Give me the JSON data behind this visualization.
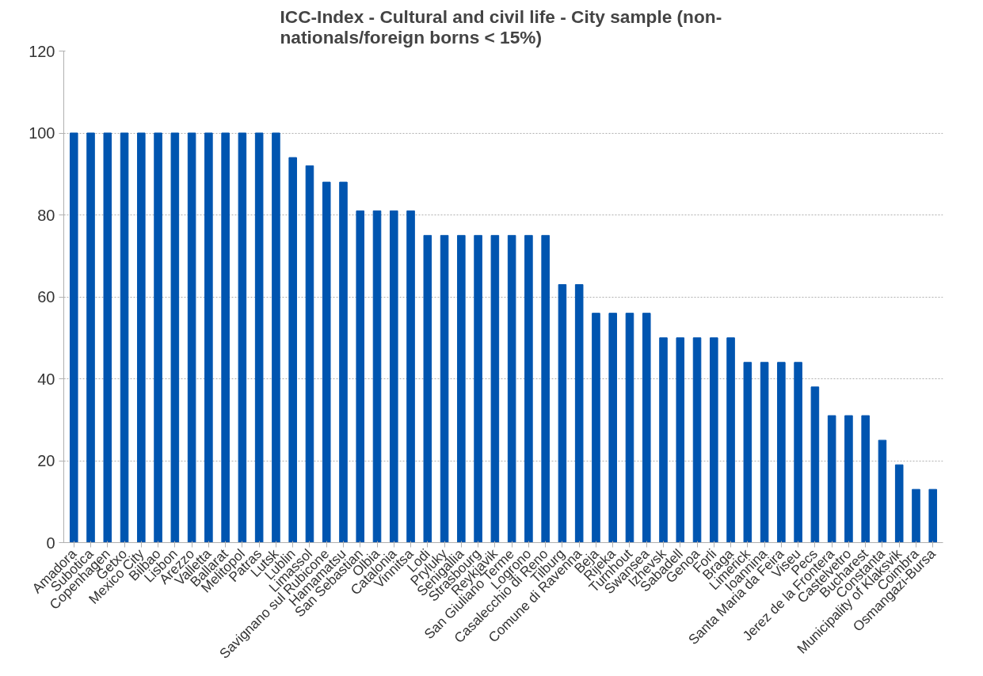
{
  "chart_data": {
    "type": "bar",
    "title": "ICC-Index - Cultural and civil life - City sample  (non-nationals/foreign borns < 15%)",
    "categories": [
      "Amadora",
      "Subotica",
      "Copenhagen",
      "Getxo",
      "Mexico City",
      "Bilbao",
      "Lisbon",
      "Arezzo",
      "Valletta",
      "Ballarat",
      "Melitopol",
      "Patras",
      "Lutsk",
      "Lublin",
      "Limassol",
      "Savignano sul Rubicone",
      "Hamamatsu",
      "San Sebastian",
      "Olbia",
      "Catalonia",
      "Vinnitsa",
      "Lodi",
      "Pryluky",
      "Senigallia",
      "Strasbourg",
      "Reykjavik",
      "San Giuliano Terme",
      "Logrono",
      "Casalecchio di Reno",
      "Tilburg",
      "Comune di Ravenna",
      "Beja",
      "Rijeka",
      "Turnhout",
      "Swansea",
      "Izhevsk",
      "Sabadell",
      "Genoa",
      "Forli",
      "Braga",
      "Limerick",
      "Ioannina",
      "Santa Maria da Feira",
      "Viseu",
      "Pecs",
      "Jerez de la Frontera",
      "Castelvetro",
      "Bucharest",
      "Constanta",
      "Municipality of Klaksvik",
      "Coimbra",
      "Osmangazi-Bursa"
    ],
    "values": [
      100,
      100,
      100,
      100,
      100,
      100,
      100,
      100,
      100,
      100,
      100,
      100,
      100,
      94,
      92,
      88,
      88,
      81,
      81,
      81,
      81,
      75,
      75,
      75,
      75,
      75,
      75,
      75,
      75,
      63,
      63,
      56,
      56,
      56,
      56,
      50,
      50,
      50,
      50,
      50,
      44,
      44,
      44,
      44,
      38,
      31,
      31,
      31,
      25,
      19,
      13,
      13
    ],
    "color": "#0055b0",
    "ylim": [
      0,
      120
    ],
    "yticks": [
      0,
      20,
      40,
      60,
      80,
      100,
      120
    ],
    "grid": "y"
  }
}
